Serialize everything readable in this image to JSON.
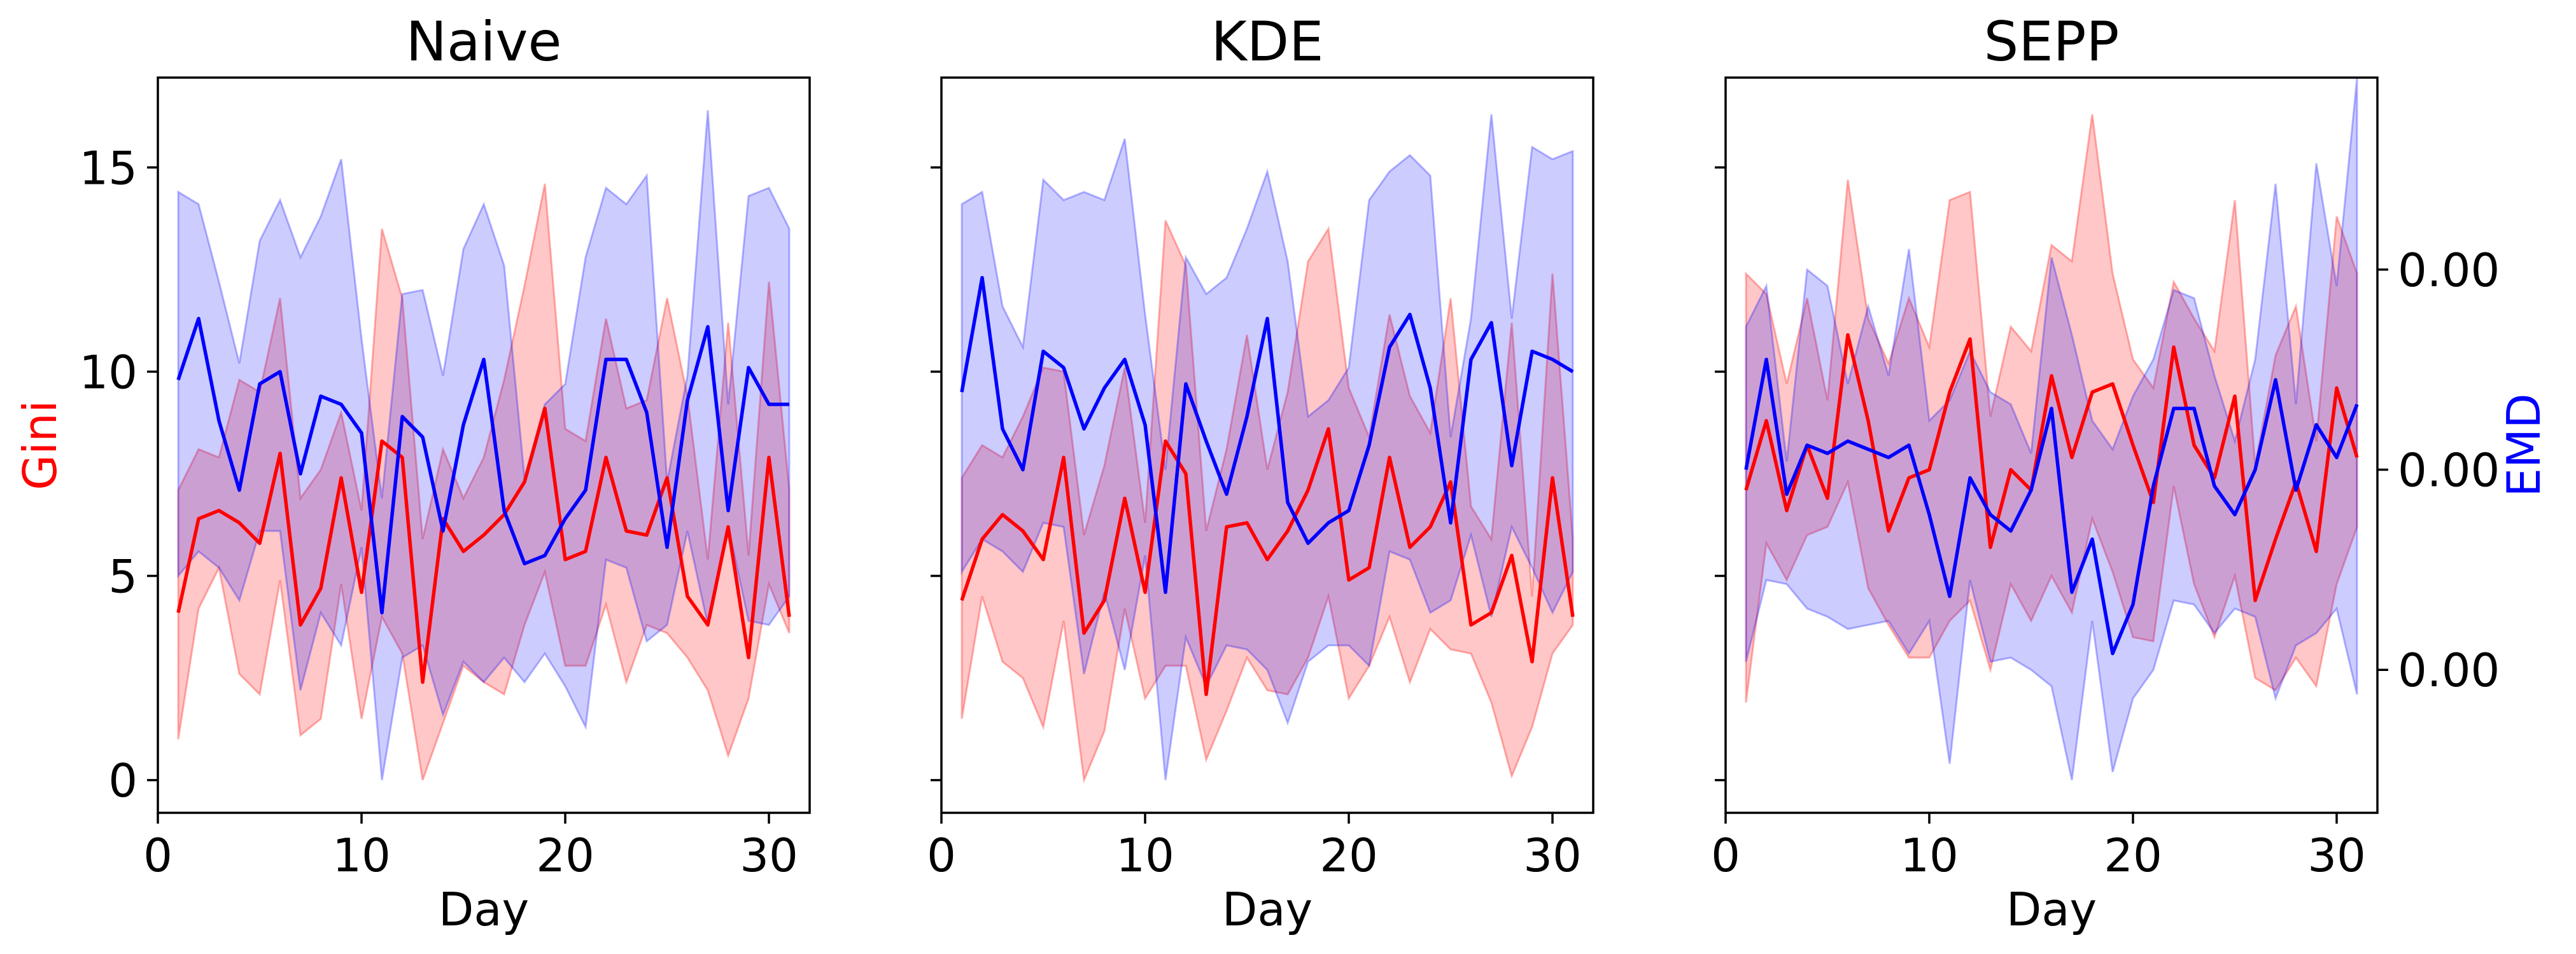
{
  "chart_data": [
    {
      "type": "line",
      "title": "Naive",
      "xlabel": "Day",
      "ylabel": "Gini",
      "ylabel_color": "#ff0000",
      "xlim": [
        0,
        32
      ],
      "ylim": [
        -0.8,
        17.2
      ],
      "xticks": [
        0,
        10,
        20,
        30
      ],
      "xtick_labels": [
        "0",
        "10",
        "20",
        "30"
      ],
      "yticks": [
        0,
        5,
        10,
        15
      ],
      "ytick_labels": [
        "0",
        "5",
        "10",
        "15"
      ],
      "show_yticklabels": true,
      "grid": false,
      "series": [
        {
          "color": "#ff0000",
          "x": [
            1,
            2,
            3,
            4,
            5,
            6,
            7,
            8,
            9,
            10,
            11,
            12,
            13,
            14,
            15,
            16,
            17,
            18,
            19,
            20,
            21,
            22,
            23,
            24,
            25,
            26,
            27,
            28,
            29,
            30,
            31
          ],
          "values": [
            4.1,
            6.4,
            6.6,
            6.3,
            5.8,
            8.0,
            3.8,
            4.7,
            7.4,
            4.6,
            8.3,
            7.9,
            2.4,
            6.4,
            5.6,
            6.0,
            6.5,
            7.3,
            9.1,
            5.4,
            5.6,
            7.9,
            6.1,
            6.0,
            7.4,
            4.5,
            3.8,
            6.2,
            3.0,
            7.9,
            4.0
          ],
          "lower": [
            1.0,
            4.2,
            5.2,
            2.6,
            2.1,
            4.9,
            1.1,
            1.5,
            4.8,
            1.5,
            4.0,
            3.1,
            0.0,
            1.4,
            2.8,
            2.4,
            2.1,
            3.8,
            5.1,
            2.8,
            2.8,
            4.3,
            2.4,
            3.8,
            3.6,
            3.0,
            2.2,
            0.6,
            2.0,
            4.8,
            3.6
          ],
          "upper": [
            7.1,
            8.1,
            7.9,
            9.8,
            9.5,
            11.8,
            6.9,
            7.6,
            9.0,
            6.6,
            13.5,
            11.8,
            5.9,
            8.1,
            6.9,
            7.9,
            9.8,
            12.1,
            14.6,
            8.6,
            8.3,
            11.3,
            9.1,
            9.3,
            11.8,
            9.4,
            5.4,
            11.2,
            5.5,
            12.2,
            7.1
          ]
        },
        {
          "color": "#0000ff",
          "x": [
            1,
            2,
            3,
            4,
            5,
            6,
            7,
            8,
            9,
            10,
            11,
            12,
            13,
            14,
            15,
            16,
            17,
            18,
            19,
            20,
            21,
            22,
            23,
            24,
            25,
            26,
            27,
            28,
            29,
            30,
            31
          ],
          "values": [
            9.8,
            11.3,
            8.8,
            7.1,
            9.7,
            10.0,
            7.5,
            9.4,
            9.2,
            8.5,
            4.1,
            8.9,
            8.4,
            6.1,
            8.7,
            10.3,
            6.6,
            5.3,
            5.5,
            6.4,
            7.1,
            10.3,
            10.3,
            9.0,
            5.7,
            9.3,
            11.1,
            6.6,
            10.1,
            9.2,
            9.2
          ],
          "lower": [
            5.0,
            5.6,
            5.2,
            4.4,
            6.1,
            6.1,
            2.2,
            4.1,
            3.3,
            5.7,
            0.0,
            3.0,
            3.3,
            1.6,
            2.9,
            2.4,
            3.0,
            2.4,
            3.1,
            2.3,
            1.3,
            5.4,
            5.2,
            3.4,
            3.8,
            6.1,
            3.8,
            6.2,
            3.9,
            3.8,
            4.5
          ],
          "upper": [
            14.4,
            14.1,
            12.2,
            10.2,
            13.2,
            14.2,
            12.8,
            13.8,
            15.2,
            10.8,
            6.9,
            11.9,
            12.0,
            9.9,
            13.0,
            14.1,
            12.6,
            7.4,
            9.2,
            9.7,
            12.8,
            14.5,
            14.1,
            14.8,
            7.3,
            9.9,
            16.4,
            9.2,
            14.3,
            14.5,
            13.5
          ]
        }
      ]
    },
    {
      "type": "line",
      "title": "KDE",
      "xlabel": "Day",
      "ylabel": "",
      "xlim": [
        0,
        32
      ],
      "ylim": [
        -0.8,
        17.2
      ],
      "xticks": [
        0,
        10,
        20,
        30
      ],
      "xtick_labels": [
        "0",
        "10",
        "20",
        "30"
      ],
      "yticks": [
        0,
        5,
        10,
        15
      ],
      "ytick_labels": [
        "0",
        "5",
        "10",
        "15"
      ],
      "show_yticklabels": false,
      "grid": false,
      "series": [
        {
          "color": "#ff0000",
          "x": [
            1,
            2,
            3,
            4,
            5,
            6,
            7,
            8,
            9,
            10,
            11,
            12,
            13,
            14,
            15,
            16,
            17,
            18,
            19,
            20,
            21,
            22,
            23,
            24,
            25,
            26,
            27,
            28,
            29,
            30,
            31
          ],
          "values": [
            4.4,
            5.9,
            6.5,
            6.1,
            5.4,
            7.9,
            3.6,
            4.4,
            6.9,
            4.6,
            8.3,
            7.5,
            2.1,
            6.2,
            6.3,
            5.4,
            6.1,
            7.1,
            8.6,
            4.9,
            5.2,
            7.9,
            5.7,
            6.2,
            7.3,
            3.8,
            4.1,
            5.5,
            2.9,
            7.4,
            4.0
          ],
          "lower": [
            1.5,
            4.5,
            2.9,
            2.5,
            1.3,
            3.9,
            0.0,
            1.2,
            4.2,
            2.0,
            2.8,
            2.8,
            0.5,
            1.7,
            3.0,
            2.2,
            2.1,
            3.0,
            4.5,
            2.0,
            2.8,
            4.0,
            2.4,
            3.7,
            3.2,
            3.1,
            1.9,
            0.1,
            1.3,
            3.1,
            3.8
          ],
          "upper": [
            7.4,
            8.2,
            7.9,
            8.9,
            10.1,
            10.0,
            6.0,
            7.7,
            10.1,
            6.3,
            13.7,
            12.6,
            6.1,
            8.1,
            10.9,
            7.6,
            9.5,
            12.7,
            13.5,
            9.6,
            8.4,
            11.4,
            9.4,
            8.5,
            11.8,
            6.7,
            5.9,
            11.2,
            4.5,
            12.4,
            5.9
          ]
        },
        {
          "color": "#0000ff",
          "x": [
            1,
            2,
            3,
            4,
            5,
            6,
            7,
            8,
            9,
            10,
            11,
            12,
            13,
            14,
            15,
            16,
            17,
            18,
            19,
            20,
            21,
            22,
            23,
            24,
            25,
            26,
            27,
            28,
            29,
            30,
            31
          ],
          "values": [
            9.5,
            12.3,
            8.6,
            7.6,
            10.5,
            10.1,
            8.6,
            9.6,
            10.3,
            8.7,
            4.6,
            9.7,
            8.3,
            7.0,
            8.9,
            11.3,
            6.8,
            5.8,
            6.3,
            6.6,
            8.2,
            10.6,
            11.4,
            9.6,
            6.3,
            10.3,
            11.2,
            7.7,
            10.5,
            10.3,
            10.0
          ],
          "lower": [
            5.1,
            5.9,
            5.6,
            5.1,
            6.3,
            6.2,
            2.6,
            4.6,
            2.7,
            5.5,
            0.0,
            3.5,
            2.3,
            3.3,
            3.2,
            2.7,
            1.4,
            2.9,
            3.3,
            3.3,
            2.8,
            5.6,
            5.4,
            4.1,
            4.4,
            6.0,
            4.0,
            6.2,
            5.2,
            4.1,
            5.1
          ],
          "upper": [
            14.1,
            14.4,
            11.6,
            10.6,
            14.7,
            14.2,
            14.4,
            14.2,
            15.7,
            11.4,
            7.6,
            12.8,
            11.9,
            12.3,
            13.5,
            14.9,
            12.7,
            8.9,
            9.3,
            10.1,
            14.2,
            14.9,
            15.3,
            14.8,
            8.4,
            11.3,
            16.3,
            11.3,
            15.5,
            15.2,
            15.4
          ]
        }
      ]
    },
    {
      "type": "line",
      "title": "SEPP",
      "xlabel": "Day",
      "ylabel": "EMD",
      "ylabel_color": "#0000ff",
      "xlim": [
        0,
        32
      ],
      "ylim": [
        -0.8,
        17.2
      ],
      "xticks": [
        0,
        10,
        20,
        30
      ],
      "xtick_labels": [
        "0",
        "10",
        "20",
        "30"
      ],
      "yticks": [
        0,
        5,
        10,
        15
      ],
      "ytick_labels": [
        "0",
        "5",
        "10",
        "15"
      ],
      "show_yticklabels": false,
      "right_yticks": [
        2.7,
        7.6,
        12.5
      ],
      "right_ytick_labels": [
        "0.00",
        "0.00",
        "0.00"
      ],
      "grid": false,
      "series": [
        {
          "color": "#ff0000",
          "x": [
            1,
            2,
            3,
            4,
            5,
            6,
            7,
            8,
            9,
            10,
            11,
            12,
            13,
            14,
            15,
            16,
            17,
            18,
            19,
            20,
            21,
            22,
            23,
            24,
            25,
            26,
            27,
            28,
            29,
            30,
            31
          ],
          "values": [
            7.1,
            8.8,
            6.6,
            8.2,
            6.9,
            10.9,
            8.8,
            6.1,
            7.4,
            7.6,
            9.5,
            10.8,
            5.7,
            7.6,
            7.1,
            9.9,
            7.9,
            9.5,
            9.7,
            8.2,
            6.8,
            10.6,
            8.2,
            7.4,
            9.4,
            4.4,
            5.9,
            7.3,
            5.6,
            9.6,
            7.9
          ],
          "lower": [
            1.9,
            5.8,
            4.9,
            6.0,
            6.2,
            7.3,
            4.7,
            3.8,
            3.0,
            3.0,
            3.9,
            4.4,
            2.7,
            4.8,
            3.9,
            5.0,
            4.1,
            6.4,
            5.1,
            3.5,
            3.4,
            7.2,
            4.8,
            3.5,
            5.0,
            2.5,
            2.2,
            3.0,
            2.3,
            4.8,
            6.2
          ],
          "upper": [
            12.4,
            11.9,
            9.7,
            11.8,
            9.3,
            14.7,
            11.3,
            10.2,
            11.8,
            10.6,
            14.2,
            14.4,
            8.9,
            11.1,
            10.5,
            13.1,
            12.7,
            16.3,
            12.4,
            10.3,
            9.6,
            12.2,
            11.3,
            10.5,
            14.2,
            7.7,
            10.4,
            11.6,
            8.3,
            13.8,
            12.4
          ]
        },
        {
          "color": "#0000ff",
          "x": [
            1,
            2,
            3,
            4,
            5,
            6,
            7,
            8,
            9,
            10,
            11,
            12,
            13,
            14,
            15,
            16,
            17,
            18,
            19,
            20,
            21,
            22,
            23,
            24,
            25,
            26,
            27,
            28,
            29,
            30,
            31
          ],
          "values": [
            7.6,
            10.3,
            7.0,
            8.2,
            8.0,
            8.3,
            8.1,
            7.9,
            8.2,
            6.5,
            4.5,
            7.4,
            6.5,
            6.1,
            7.1,
            9.1,
            4.6,
            5.9,
            3.1,
            4.3,
            7.2,
            9.1,
            9.1,
            7.2,
            6.5,
            7.6,
            9.8,
            7.1,
            8.7,
            7.9,
            9.2
          ],
          "lower": [
            2.9,
            4.9,
            4.8,
            4.2,
            4.0,
            3.7,
            3.8,
            3.9,
            3.1,
            3.9,
            0.4,
            4.9,
            2.9,
            3.0,
            2.7,
            2.3,
            0.0,
            3.9,
            0.2,
            2.0,
            2.7,
            4.4,
            4.3,
            3.6,
            4.2,
            4.0,
            2.0,
            3.3,
            3.6,
            4.2,
            2.1
          ],
          "upper": [
            11.1,
            12.1,
            7.8,
            12.5,
            12.1,
            9.7,
            11.6,
            9.9,
            13.0,
            8.8,
            9.3,
            10.5,
            9.5,
            9.2,
            8.0,
            12.8,
            10.9,
            8.8,
            8.1,
            9.4,
            10.3,
            12.0,
            11.8,
            9.9,
            8.3,
            10.3,
            14.6,
            9.2,
            15.1,
            12.1,
            17.2
          ]
        }
      ]
    }
  ]
}
